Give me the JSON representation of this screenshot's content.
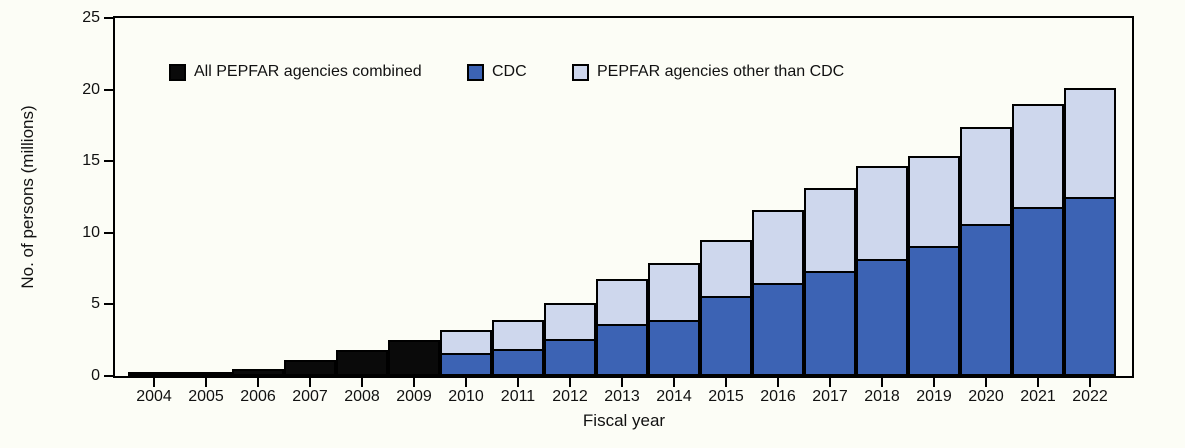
{
  "figure": {
    "background_color": "#FCFDF6",
    "frame_color": "#000000",
    "text_color": "#111111"
  },
  "chart_data": {
    "type": "bar",
    "stacked": true,
    "title": "",
    "xlabel": "Fiscal year",
    "ylabel": "No. of persons (millions)",
    "ylim": [
      0,
      25
    ],
    "yticks": [
      0,
      5,
      10,
      15,
      20,
      25
    ],
    "grid": false,
    "legend_position": "top-inside",
    "categories": [
      "2004",
      "2005",
      "2006",
      "2007",
      "2008",
      "2009",
      "2010",
      "2011",
      "2012",
      "2013",
      "2014",
      "2015",
      "2016",
      "2017",
      "2018",
      "2019",
      "2020",
      "2021",
      "2022"
    ],
    "series": [
      {
        "name": "All PEPFAR agencies combined",
        "color": "#0A0A0A",
        "values": [
          0.1,
          0.2,
          0.5,
          1.1,
          1.8,
          2.5,
          0,
          0,
          0,
          0,
          0,
          0,
          0,
          0,
          0,
          0,
          0,
          0,
          0
        ]
      },
      {
        "name": "CDC",
        "color": "#3C63B4",
        "values": [
          0,
          0,
          0,
          0,
          0,
          0,
          1.6,
          1.9,
          2.6,
          3.6,
          3.9,
          5.6,
          6.5,
          7.3,
          8.2,
          9.1,
          10.6,
          11.8,
          12.5
        ]
      },
      {
        "name": "PEPFAR agencies other than CDC",
        "color": "#CED7ED",
        "values": [
          0,
          0,
          0,
          0,
          0,
          0,
          1.6,
          2.0,
          2.5,
          3.2,
          4.0,
          3.9,
          5.1,
          5.8,
          6.5,
          6.3,
          6.8,
          7.2,
          7.6
        ]
      }
    ],
    "stacked_totals": [
      0.1,
      0.2,
      0.5,
      1.1,
      1.8,
      2.5,
      3.2,
      3.9,
      5.1,
      6.8,
      7.9,
      9.5,
      11.6,
      13.1,
      14.7,
      15.4,
      17.4,
      19.0,
      20.1
    ]
  }
}
